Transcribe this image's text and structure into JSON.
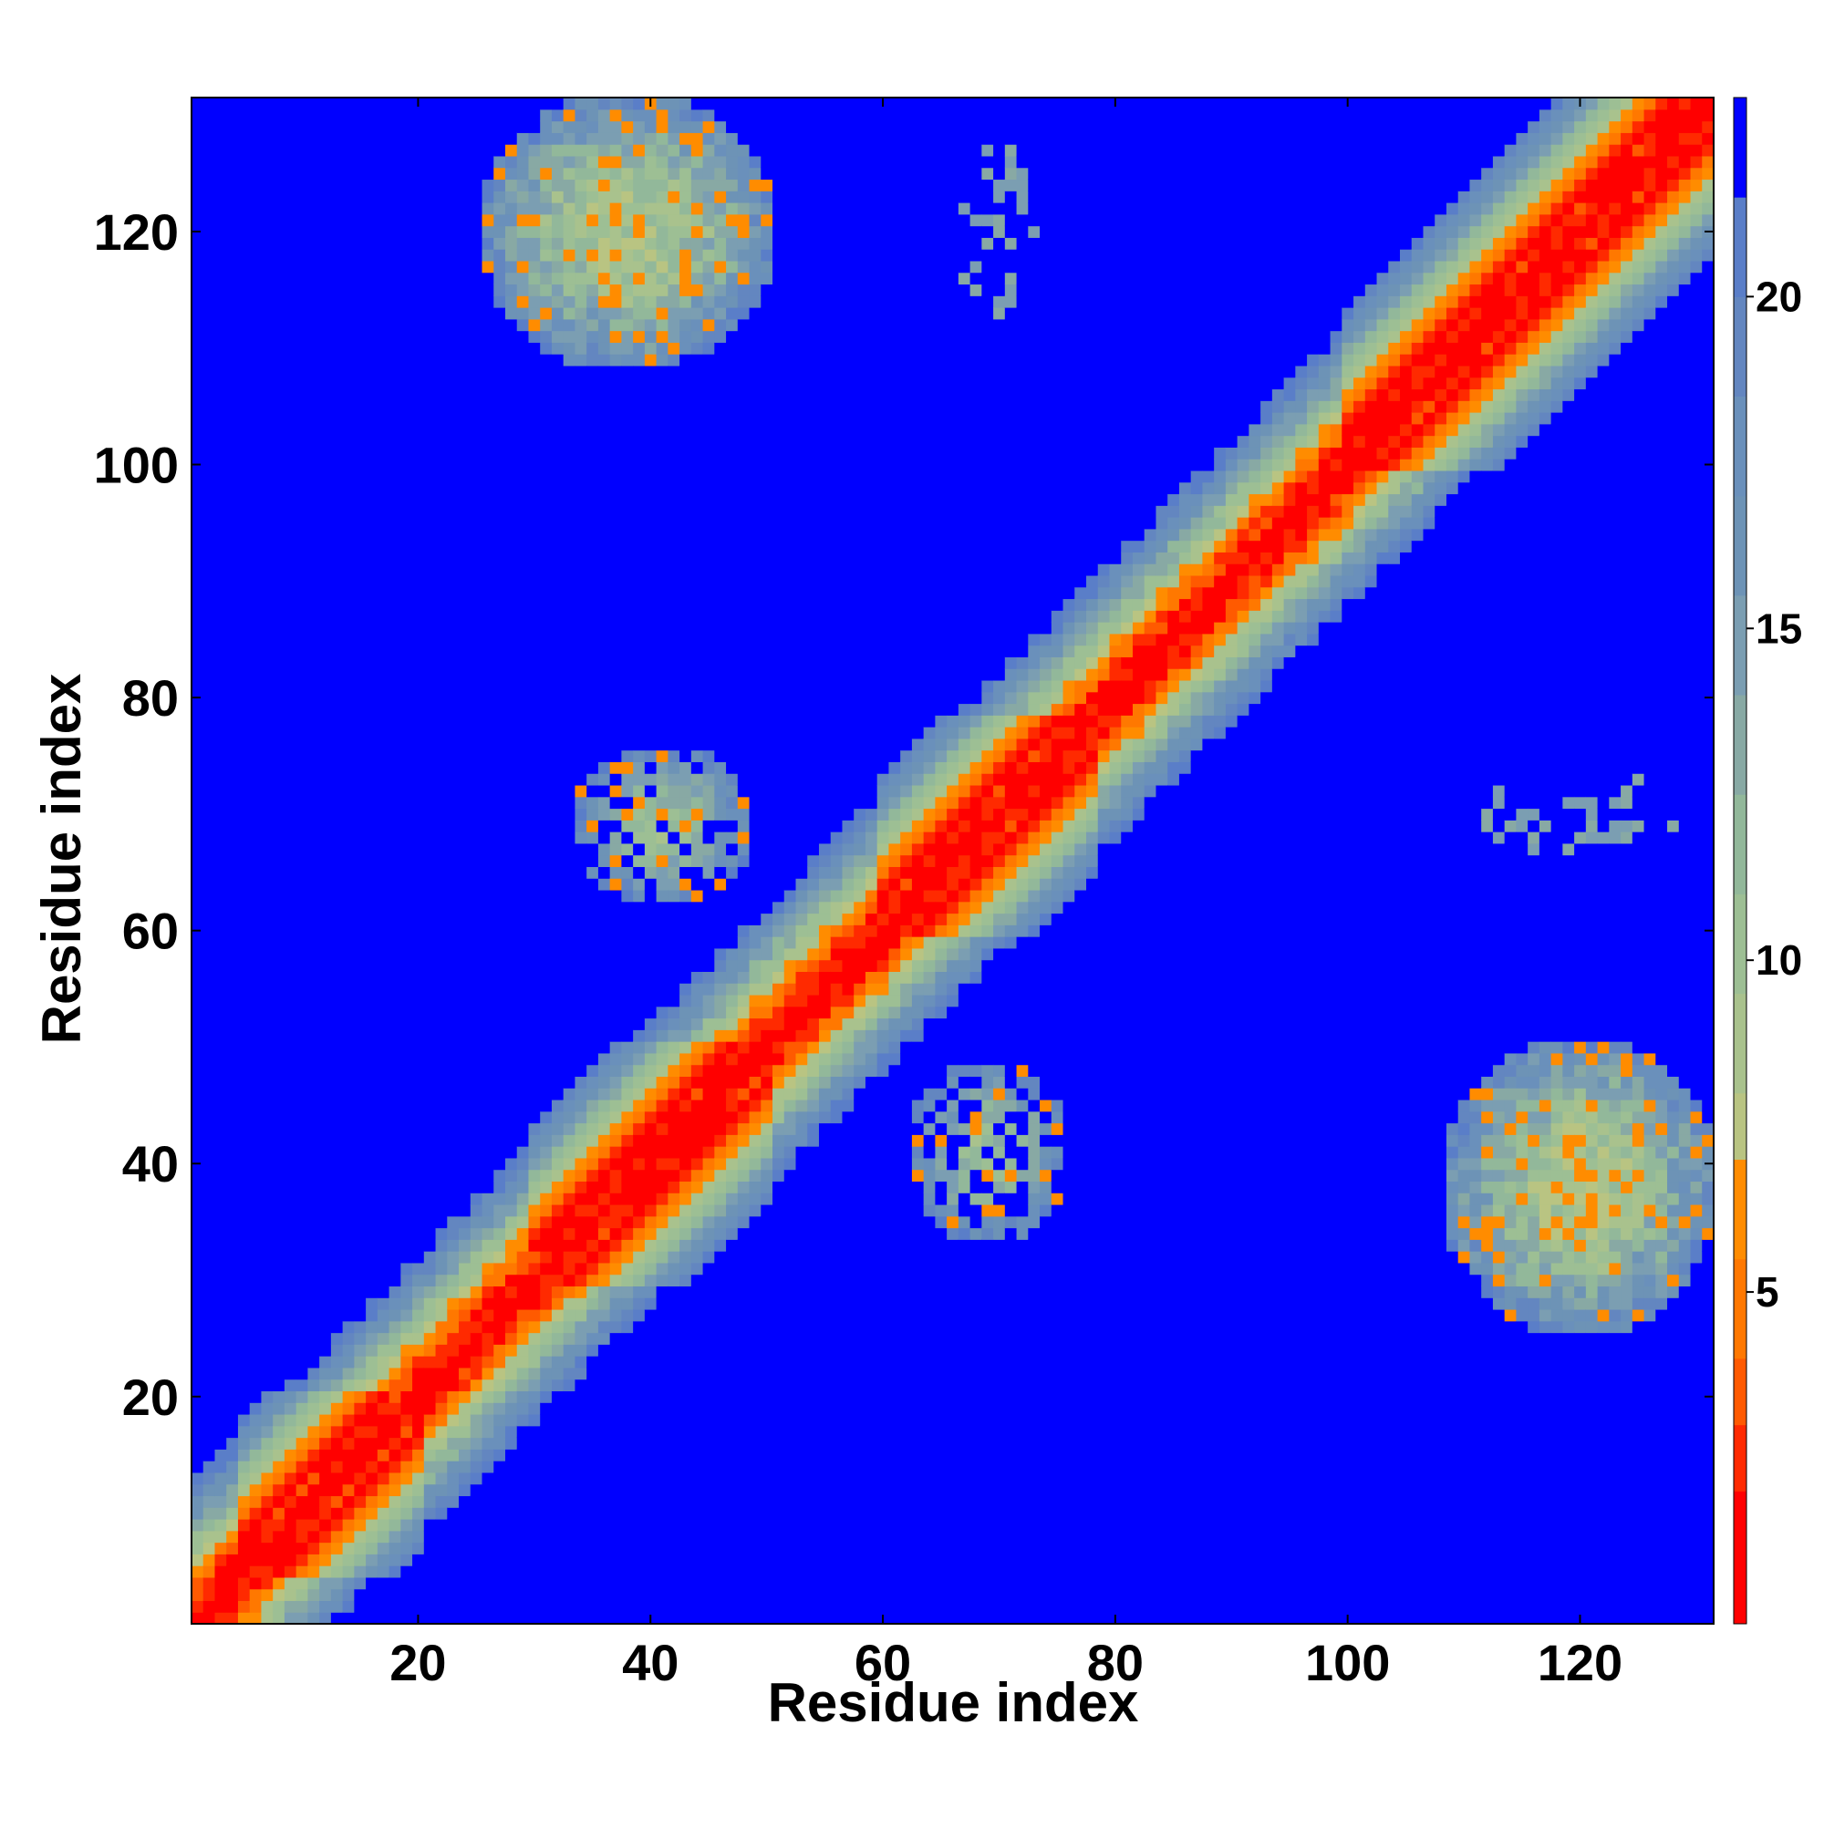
{
  "chart_data": {
    "type": "heatmap",
    "title": "",
    "xlabel": "Residue index",
    "ylabel": "Residue index",
    "n_residues": 131,
    "xlim": [
      1,
      131
    ],
    "ylim": [
      1,
      131
    ],
    "x_ticks": [
      "20",
      "40",
      "60",
      "80",
      "100",
      "120"
    ],
    "y_ticks": [
      "20",
      "40",
      "60",
      "80",
      "100",
      "120"
    ],
    "colorbar": {
      "ticks": [
        "5",
        "10",
        "15",
        "20"
      ],
      "range": [
        0,
        23
      ],
      "levels": [
        {
          "max": 2.0,
          "color": "#ff0000"
        },
        {
          "max": 3.0,
          "color": "#ff2a00"
        },
        {
          "max": 4.0,
          "color": "#ff5a00"
        },
        {
          "max": 5.5,
          "color": "#ff7800"
        },
        {
          "max": 7.0,
          "color": "#ff8c00"
        },
        {
          "max": 8.0,
          "color": "#b9c482"
        },
        {
          "max": 9.5,
          "color": "#a9c28d"
        },
        {
          "max": 11.0,
          "color": "#9dbf94"
        },
        {
          "max": 12.5,
          "color": "#92b89a"
        },
        {
          "max": 14.0,
          "color": "#88a9a4"
        },
        {
          "max": 15.5,
          "color": "#7b9eb2"
        },
        {
          "max": 17.0,
          "color": "#6d93b6"
        },
        {
          "max": 18.5,
          "color": "#6a90bb"
        },
        {
          "max": 20.0,
          "color": "#6386c0"
        },
        {
          "max": 21.5,
          "color": "#5a7ec8"
        },
        {
          "max": 99.0,
          "color": "#0000ff"
        }
      ]
    },
    "matrix_description": {
      "diagonal_band_halfwidth": 3,
      "contact_regions": [
        {
          "i_range": [
            25,
            50
          ],
          "j_range": [
            108,
            131
          ],
          "description": "N-terminal segment contacts C-terminal segment"
        },
        {
          "i_range": [
            33,
            48
          ],
          "j_range": [
            61,
            76
          ],
          "description": "residues 33-48 contact residues 61-76"
        },
        {
          "i_range": [
            66,
            73
          ],
          "j_range": [
            112,
            129
          ],
          "description": "sparse contacts"
        }
      ]
    },
    "grid": false
  }
}
